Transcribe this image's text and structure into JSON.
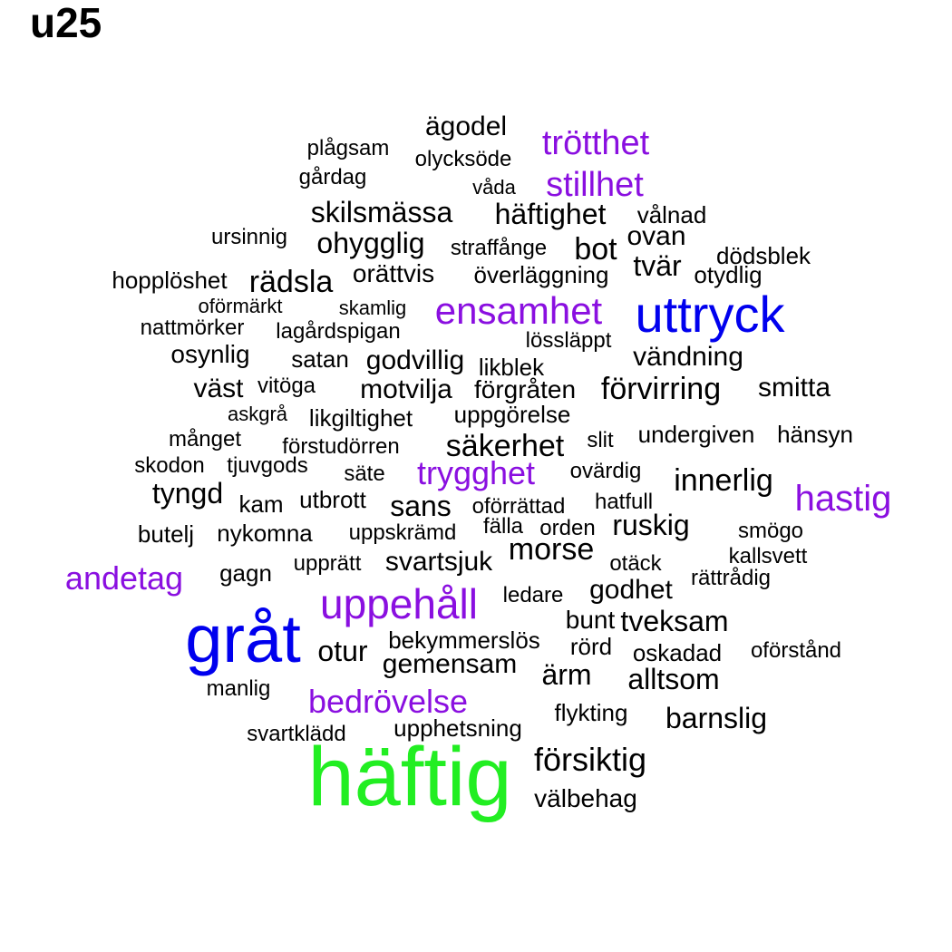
{
  "title": "u25",
  "colors": {
    "level1": "#000000",
    "level2": "#8a0fe0",
    "level3": "#0000ee",
    "level4": "#22ee22"
  },
  "words": [
    {
      "text": "häftig",
      "level": "level4"
    },
    {
      "text": "gråt",
      "level": "level3"
    },
    {
      "text": "uttryck",
      "level": "level3"
    },
    {
      "text": "uppehåll",
      "level": "level2"
    },
    {
      "text": "ensamhet",
      "level": "level2"
    },
    {
      "text": "bedrövelse",
      "level": "level2"
    },
    {
      "text": "trygghet",
      "level": "level2"
    },
    {
      "text": "hastig",
      "level": "level2"
    },
    {
      "text": "andetag",
      "level": "level2"
    },
    {
      "text": "trötthet",
      "level": "level2"
    },
    {
      "text": "stillhet",
      "level": "level2"
    },
    {
      "text": "ägodel",
      "level": "level1"
    },
    {
      "text": "plågsam",
      "level": "level1"
    },
    {
      "text": "olycksöde",
      "level": "level1"
    },
    {
      "text": "gårdag",
      "level": "level1"
    },
    {
      "text": "våda",
      "level": "level1"
    },
    {
      "text": "skilsmässa",
      "level": "level1"
    },
    {
      "text": "häftighet",
      "level": "level1"
    },
    {
      "text": "vålnad",
      "level": "level1"
    },
    {
      "text": "ursinnig",
      "level": "level1"
    },
    {
      "text": "ohygglig",
      "level": "level1"
    },
    {
      "text": "straffånge",
      "level": "level1"
    },
    {
      "text": "bot",
      "level": "level1"
    },
    {
      "text": "ovan",
      "level": "level1"
    },
    {
      "text": "dödsblek",
      "level": "level1"
    },
    {
      "text": "tvär",
      "level": "level1"
    },
    {
      "text": "hopplöshet",
      "level": "level1"
    },
    {
      "text": "rädsla",
      "level": "level1"
    },
    {
      "text": "orättvis",
      "level": "level1"
    },
    {
      "text": "överläggning",
      "level": "level1"
    },
    {
      "text": "otydlig",
      "level": "level1"
    },
    {
      "text": "oförmärkt",
      "level": "level1"
    },
    {
      "text": "skamlig",
      "level": "level1"
    },
    {
      "text": "nattmörker",
      "level": "level1"
    },
    {
      "text": "lagårdspigan",
      "level": "level1"
    },
    {
      "text": "lössläppt",
      "level": "level1"
    },
    {
      "text": "osynlig",
      "level": "level1"
    },
    {
      "text": "satan",
      "level": "level1"
    },
    {
      "text": "godvillig",
      "level": "level1"
    },
    {
      "text": "likblek",
      "level": "level1"
    },
    {
      "text": "vändning",
      "level": "level1"
    },
    {
      "text": "väst",
      "level": "level1"
    },
    {
      "text": "vitöga",
      "level": "level1"
    },
    {
      "text": "motvilja",
      "level": "level1"
    },
    {
      "text": "förgråten",
      "level": "level1"
    },
    {
      "text": "förvirring",
      "level": "level1"
    },
    {
      "text": "smitta",
      "level": "level1"
    },
    {
      "text": "askgrå",
      "level": "level1"
    },
    {
      "text": "likgiltighet",
      "level": "level1"
    },
    {
      "text": "uppgörelse",
      "level": "level1"
    },
    {
      "text": "månget",
      "level": "level1"
    },
    {
      "text": "förstudörren",
      "level": "level1"
    },
    {
      "text": "säkerhet",
      "level": "level1"
    },
    {
      "text": "slit",
      "level": "level1"
    },
    {
      "text": "undergiven",
      "level": "level1"
    },
    {
      "text": "hänsyn",
      "level": "level1"
    },
    {
      "text": "skodon",
      "level": "level1"
    },
    {
      "text": "tjuvgods",
      "level": "level1"
    },
    {
      "text": "säte",
      "level": "level1"
    },
    {
      "text": "ovärdig",
      "level": "level1"
    },
    {
      "text": "innerlig",
      "level": "level1"
    },
    {
      "text": "tyngd",
      "level": "level1"
    },
    {
      "text": "kam",
      "level": "level1"
    },
    {
      "text": "utbrott",
      "level": "level1"
    },
    {
      "text": "sans",
      "level": "level1"
    },
    {
      "text": "oförrättad",
      "level": "level1"
    },
    {
      "text": "hatfull",
      "level": "level1"
    },
    {
      "text": "butelj",
      "level": "level1"
    },
    {
      "text": "nykomna",
      "level": "level1"
    },
    {
      "text": "uppskrämd",
      "level": "level1"
    },
    {
      "text": "fälla",
      "level": "level1"
    },
    {
      "text": "orden",
      "level": "level1"
    },
    {
      "text": "ruskig",
      "level": "level1"
    },
    {
      "text": "smögo",
      "level": "level1"
    },
    {
      "text": "morse",
      "level": "level1"
    },
    {
      "text": "kallsvett",
      "level": "level1"
    },
    {
      "text": "gagn",
      "level": "level1"
    },
    {
      "text": "upprätt",
      "level": "level1"
    },
    {
      "text": "svartsjuk",
      "level": "level1"
    },
    {
      "text": "otäck",
      "level": "level1"
    },
    {
      "text": "rättrådig",
      "level": "level1"
    },
    {
      "text": "godhet",
      "level": "level1"
    },
    {
      "text": "ledare",
      "level": "level1"
    },
    {
      "text": "bunt",
      "level": "level1"
    },
    {
      "text": "tveksam",
      "level": "level1"
    },
    {
      "text": "bekymmerslös",
      "level": "level1"
    },
    {
      "text": "otur",
      "level": "level1"
    },
    {
      "text": "rörd",
      "level": "level1"
    },
    {
      "text": "oskadad",
      "level": "level1"
    },
    {
      "text": "oförstånd",
      "level": "level1"
    },
    {
      "text": "gemensam",
      "level": "level1"
    },
    {
      "text": "ärm",
      "level": "level1"
    },
    {
      "text": "alltsom",
      "level": "level1"
    },
    {
      "text": "manlig",
      "level": "level1"
    },
    {
      "text": "flykting",
      "level": "level1"
    },
    {
      "text": "barnslig",
      "level": "level1"
    },
    {
      "text": "svartklädd",
      "level": "level1"
    },
    {
      "text": "upphetsning",
      "level": "level1"
    },
    {
      "text": "försiktig",
      "level": "level1"
    },
    {
      "text": "välbehag",
      "level": "level1"
    }
  ]
}
